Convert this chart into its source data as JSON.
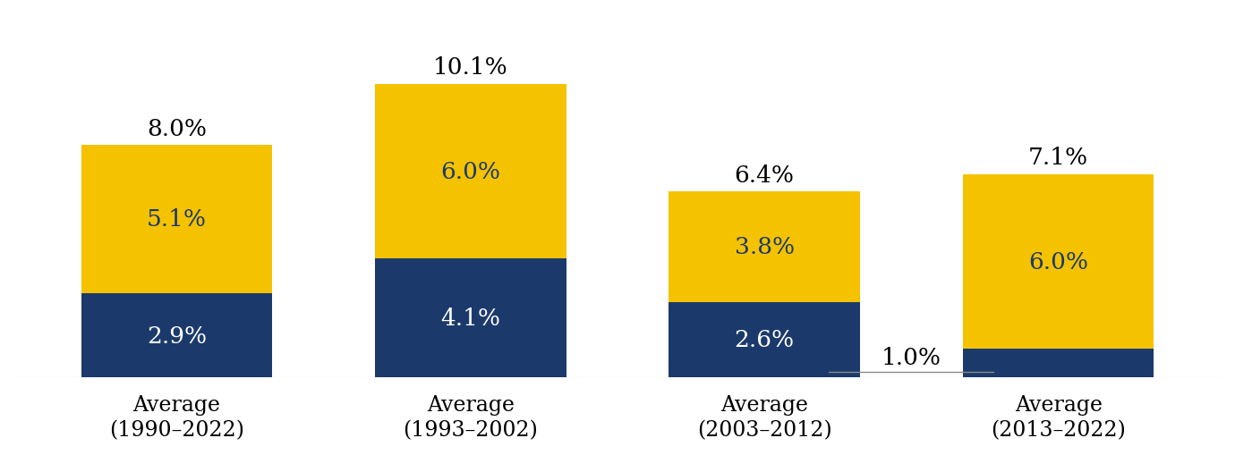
{
  "categories": [
    "Average\n(1990–2022)",
    "Average\n(1993–2002)",
    "Average\n(2003–2012)",
    "Average\n(2013–2022)"
  ],
  "dark_values": [
    2.9,
    4.1,
    2.6,
    1.0
  ],
  "gold_values": [
    5.1,
    6.0,
    3.8,
    6.0
  ],
  "dark_color": "#1b3a6b",
  "gold_color": "#f5c200",
  "dark_labels": [
    "2.9%",
    "4.1%",
    "2.6%"
  ],
  "gold_labels": [
    "5.1%",
    "6.0%",
    "3.8%",
    "6.0%"
  ],
  "total_labels": [
    "8.0%",
    "10.1%",
    "6.4%",
    "7.1%"
  ],
  "annotation_label": "1.0%",
  "background_color": "#ffffff",
  "bar_width": 0.65,
  "bar_positions": [
    0,
    1,
    2,
    3
  ],
  "ylim": [
    0,
    12.5
  ],
  "label_fontsize": 19,
  "tick_fontsize": 17,
  "total_fontsize": 19,
  "annotation_fontsize": 19,
  "xlim": [
    -0.55,
    3.55
  ]
}
